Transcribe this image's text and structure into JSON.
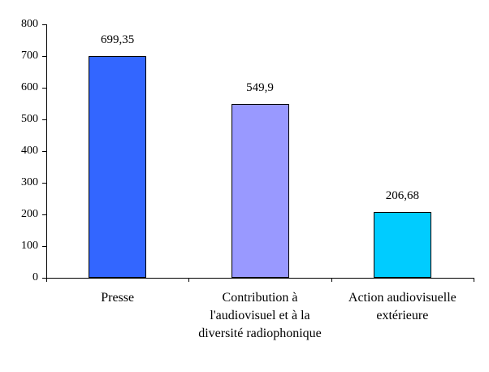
{
  "chart_data": {
    "type": "bar",
    "title": "",
    "xlabel": "",
    "ylabel": "",
    "categories": [
      "Presse",
      "Contribution à l'audiovisuel et à la diversité radiophonique",
      "Action audiovisuelle extérieure"
    ],
    "category_lines": [
      [
        "Presse"
      ],
      [
        "Contribution à",
        "l'audiovisuel et à la",
        "diversité radiophonique"
      ],
      [
        "Action audiovisuelle",
        "extérieure"
      ]
    ],
    "values": [
      699.35,
      549.9,
      206.68
    ],
    "value_labels": [
      "699,35",
      "549,9",
      "206,68"
    ],
    "bar_colors": [
      "#3366ff",
      "#9999ff",
      "#00ccff"
    ],
    "bar_border_color": "#000000",
    "ylim": [
      0,
      800
    ],
    "yticks": [
      0,
      100,
      200,
      300,
      400,
      500,
      600,
      700,
      800
    ],
    "ytick_labels": [
      "0",
      "100",
      "200",
      "300",
      "400",
      "500",
      "600",
      "700",
      "800"
    ],
    "grid": false,
    "legend": "none",
    "axis_color": "#000000",
    "text_color": "#000000",
    "background_color": "#ffffff"
  }
}
